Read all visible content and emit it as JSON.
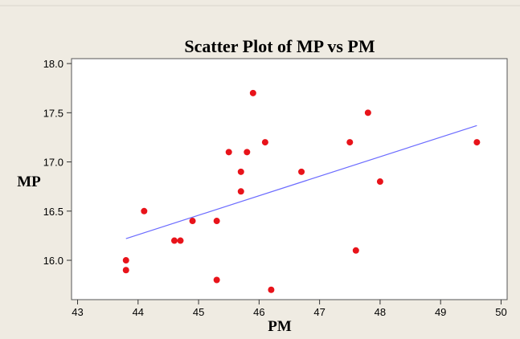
{
  "chart_data": {
    "type": "scatter",
    "title": "Scatter Plot of MP vs PM",
    "xlabel": "PM",
    "ylabel": "MP",
    "xlim": [
      42.9,
      50.1
    ],
    "ylim": [
      15.6,
      18.05
    ],
    "xticks": [
      43,
      44,
      45,
      46,
      47,
      48,
      49,
      50
    ],
    "yticks": [
      16.0,
      16.5,
      17.0,
      17.5,
      18.0
    ],
    "ytick_labels": [
      "16.0",
      "16.5",
      "17.0",
      "17.5",
      "18.0"
    ],
    "grid": false,
    "points": [
      {
        "x": 43.8,
        "y": 16.0
      },
      {
        "x": 43.8,
        "y": 15.9
      },
      {
        "x": 44.1,
        "y": 16.5
      },
      {
        "x": 44.6,
        "y": 16.2
      },
      {
        "x": 44.7,
        "y": 16.2
      },
      {
        "x": 44.9,
        "y": 16.4
      },
      {
        "x": 45.3,
        "y": 16.4
      },
      {
        "x": 45.3,
        "y": 15.8
      },
      {
        "x": 45.5,
        "y": 17.1
      },
      {
        "x": 45.7,
        "y": 16.9
      },
      {
        "x": 45.7,
        "y": 16.7
      },
      {
        "x": 45.8,
        "y": 17.1
      },
      {
        "x": 45.9,
        "y": 17.7
      },
      {
        "x": 46.1,
        "y": 17.2
      },
      {
        "x": 46.2,
        "y": 15.7
      },
      {
        "x": 46.7,
        "y": 16.9
      },
      {
        "x": 47.5,
        "y": 17.2
      },
      {
        "x": 47.6,
        "y": 16.1
      },
      {
        "x": 47.8,
        "y": 17.5
      },
      {
        "x": 48.0,
        "y": 16.8
      },
      {
        "x": 49.6,
        "y": 17.2
      }
    ],
    "fit_line": {
      "x": [
        43.8,
        49.6
      ],
      "y": [
        16.22,
        17.37
      ]
    },
    "colors": {
      "background": "#efebe2",
      "plot_area": "#ffffff",
      "points": "#e8131a",
      "fit_line": "#6b6bff",
      "text": "#000000"
    }
  }
}
